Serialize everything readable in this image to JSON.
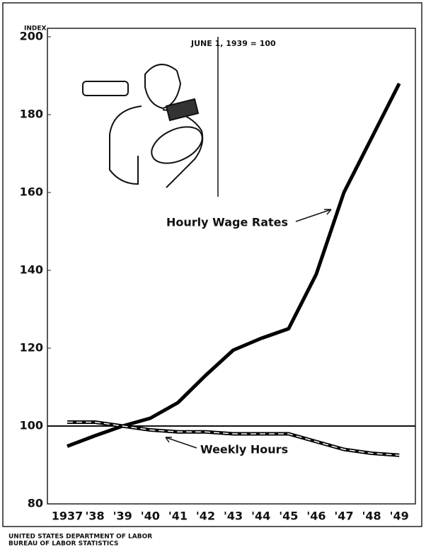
{
  "chart_data": {
    "type": "line",
    "y_label": "INDEX",
    "annotation": "JUNE 1, 1939 = 100",
    "categories": [
      "1937",
      "'38",
      "'39",
      "'40",
      "'41",
      "'42",
      "'43",
      "'44",
      "'45",
      "'46",
      "'47",
      "'48",
      "'49"
    ],
    "series": [
      {
        "name": "Hourly Wage Rates",
        "color": "#000000",
        "values": [
          94.8,
          97.5,
          100,
          102,
          106,
          113,
          119.5,
          122.5,
          125,
          139,
          160,
          174,
          188
        ]
      },
      {
        "name": "Weekly Hours",
        "color": "#000000",
        "values": [
          101,
          101,
          100,
          99,
          98.5,
          98.5,
          98,
          98,
          98,
          96,
          94,
          93,
          92.5
        ]
      }
    ],
    "reference_line": 100,
    "ylim": [
      80,
      200
    ],
    "yticks": [
      80,
      100,
      120,
      140,
      160,
      180,
      200
    ],
    "source": [
      "UNITED STATES DEPARTMENT OF LABOR",
      "BUREAU OF LABOR STATISTICS"
    ]
  }
}
